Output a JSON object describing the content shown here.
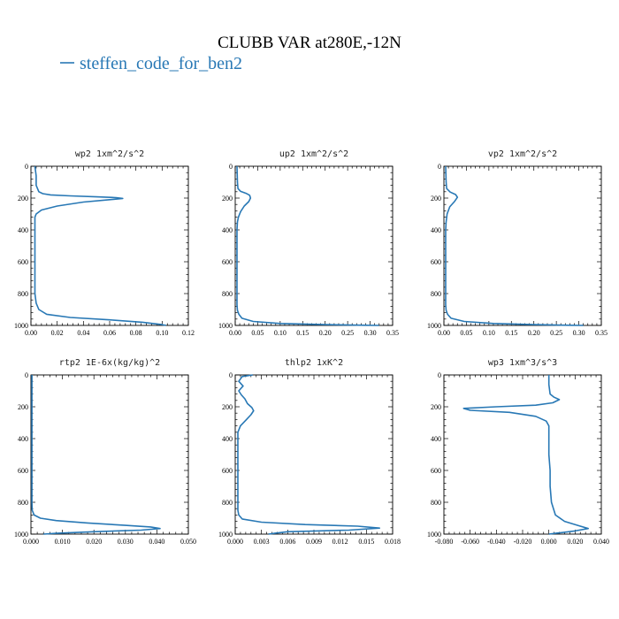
{
  "figure": {
    "title": "CLUBB VAR at280E,-12N",
    "legend": {
      "label": "steffen_code_for_ben2",
      "color": "#2878b5"
    }
  },
  "chart_data": [
    {
      "type": "line",
      "title": "wp2  1xm^2/s^2",
      "xlim": [
        0,
        0.12
      ],
      "ylim": [
        1000,
        0
      ],
      "y_inverted": true,
      "xticks": [
        "0.00",
        "0.02",
        "0.04",
        "0.06",
        "0.08",
        "0.10",
        "0.12"
      ],
      "yticks": [
        "0",
        "200",
        "400",
        "600",
        "800",
        "1000"
      ],
      "series": [
        {
          "color": "#2878b5",
          "x": [
            0.003,
            0.004,
            0.004,
            0.005,
            0.006,
            0.009,
            0.015,
            0.03,
            0.05,
            0.065,
            0.07,
            0.06,
            0.04,
            0.02,
            0.008,
            0.004,
            0.003,
            0.003,
            0.003,
            0.003,
            0.003,
            0.003,
            0.004,
            0.006,
            0.012,
            0.03,
            0.06,
            0.085,
            0.1,
            0.103
          ],
          "y": [
            0,
            60,
            120,
            140,
            160,
            172,
            180,
            186,
            192,
            197,
            202,
            210,
            225,
            250,
            275,
            300,
            320,
            400,
            500,
            600,
            700,
            800,
            860,
            900,
            930,
            950,
            965,
            980,
            995,
            1000
          ]
        }
      ]
    },
    {
      "type": "line",
      "title": "up2  1xm^2/s^2",
      "xlim": [
        0,
        0.35
      ],
      "ylim": [
        1000,
        0
      ],
      "y_inverted": true,
      "xticks": [
        "0.00",
        "0.05",
        "0.10",
        "0.15",
        "0.20",
        "0.25",
        "0.30",
        "0.35"
      ],
      "yticks": [
        "0",
        "200",
        "400",
        "600",
        "800",
        "1000"
      ],
      "series": [
        {
          "color": "#2878b5",
          "x": [
            0.004,
            0.005,
            0.006,
            0.012,
            0.024,
            0.032,
            0.034,
            0.03,
            0.02,
            0.012,
            0.007,
            0.005,
            0.004,
            0.004,
            0.004,
            0.004,
            0.005,
            0.008,
            0.015,
            0.04,
            0.1,
            0.2,
            0.29,
            0.32
          ],
          "y": [
            0,
            100,
            140,
            158,
            170,
            182,
            200,
            222,
            250,
            285,
            320,
            350,
            400,
            600,
            800,
            870,
            905,
            930,
            955,
            975,
            988,
            995,
            999,
            1000
          ]
        }
      ]
    },
    {
      "type": "line",
      "title": "vp2  1xm^2/s^2",
      "xlim": [
        0,
        0.35
      ],
      "ylim": [
        1000,
        0
      ],
      "y_inverted": true,
      "xticks": [
        "0.00",
        "0.05",
        "0.10",
        "0.15",
        "0.20",
        "0.25",
        "0.30",
        "0.35"
      ],
      "yticks": [
        "0",
        "200",
        "400",
        "600",
        "800",
        "1000"
      ],
      "series": [
        {
          "color": "#2878b5",
          "x": [
            0.004,
            0.005,
            0.006,
            0.014,
            0.026,
            0.03,
            0.024,
            0.013,
            0.007,
            0.005,
            0.004,
            0.004,
            0.004,
            0.004,
            0.005,
            0.008,
            0.016,
            0.045,
            0.11,
            0.2,
            0.28,
            0.31
          ],
          "y": [
            0,
            100,
            140,
            162,
            178,
            195,
            220,
            255,
            300,
            350,
            400,
            600,
            800,
            870,
            905,
            930,
            955,
            975,
            988,
            995,
            999,
            1000
          ]
        }
      ]
    },
    {
      "type": "line",
      "title": "rtp2  1E-6x(kg/kg)^2",
      "xlim": [
        0,
        0.05
      ],
      "ylim": [
        1000,
        0
      ],
      "y_inverted": true,
      "xticks": [
        "0.000",
        "0.010",
        "0.020",
        "0.030",
        "0.040",
        "0.050"
      ],
      "yticks": [
        "0",
        "200",
        "400",
        "600",
        "800",
        "1000"
      ],
      "series": [
        {
          "color": "#2878b5",
          "x": [
            0.0003,
            0.0003,
            0.0003,
            0.0004,
            0.001,
            0.003,
            0.008,
            0.018,
            0.03,
            0.038,
            0.041,
            0.035,
            0.02,
            0.008,
            0.004
          ],
          "y": [
            0,
            400,
            800,
            850,
            880,
            900,
            915,
            930,
            945,
            955,
            965,
            975,
            985,
            995,
            1000
          ]
        }
      ]
    },
    {
      "type": "line",
      "title": "thlp2  1xK^2",
      "xlim": [
        0,
        0.018
      ],
      "ylim": [
        1000,
        0
      ],
      "y_inverted": true,
      "xticks": [
        "0.000",
        "0.003",
        "0.006",
        "0.009",
        "0.012",
        "0.015",
        "0.018"
      ],
      "yticks": [
        "0",
        "200",
        "400",
        "600",
        "800",
        "1000"
      ],
      "series": [
        {
          "color": "#2878b5",
          "x": [
            0.002,
            0.0008,
            0.0004,
            0.0009,
            0.0004,
            0.0007,
            0.0011,
            0.0014,
            0.0019,
            0.0021,
            0.0018,
            0.0012,
            0.0006,
            0.0003,
            0.0003,
            0.0003,
            0.0003,
            0.0004,
            0.0008,
            0.003,
            0.008,
            0.014,
            0.0165,
            0.013,
            0.006,
            0.0045,
            0.0038
          ],
          "y": [
            0,
            10,
            40,
            70,
            100,
            125,
            150,
            180,
            205,
            225,
            250,
            285,
            320,
            360,
            500,
            700,
            850,
            880,
            905,
            925,
            940,
            950,
            962,
            975,
            985,
            995,
            1000
          ]
        }
      ]
    },
    {
      "type": "line",
      "title": "wp3  1xm^3/s^3",
      "xlim": [
        -0.08,
        0.04
      ],
      "ylim": [
        1000,
        0
      ],
      "y_inverted": true,
      "xticks": [
        "-0.080",
        "-0.060",
        "-0.040",
        "-0.020",
        "0.000",
        "0.020",
        "0.040"
      ],
      "yticks": [
        "0",
        "200",
        "400",
        "600",
        "800",
        "1000"
      ],
      "series": [
        {
          "color": "#2878b5",
          "x": [
            0.0,
            0.0,
            0.001,
            0.004,
            0.008,
            0.003,
            -0.01,
            -0.04,
            -0.065,
            -0.06,
            -0.03,
            -0.01,
            -0.002,
            0.0,
            0.0,
            0.0,
            0.001,
            0.001,
            0.002,
            0.005,
            0.012,
            0.022,
            0.03,
            0.02,
            0.005,
            0.0
          ],
          "y": [
            0,
            60,
            120,
            140,
            155,
            175,
            190,
            200,
            210,
            222,
            235,
            260,
            290,
            320,
            400,
            500,
            600,
            700,
            800,
            880,
            920,
            945,
            965,
            980,
            995,
            1000
          ]
        }
      ]
    }
  ]
}
